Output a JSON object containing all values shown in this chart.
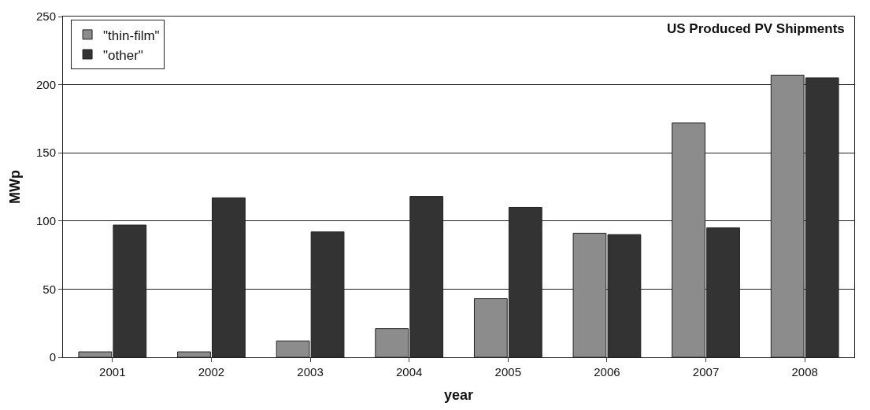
{
  "chart_data": {
    "type": "bar",
    "title": "US Produced PV Shipments",
    "xlabel": "year",
    "ylabel": "MWp",
    "categories": [
      "2001",
      "2002",
      "2003",
      "2004",
      "2005",
      "2006",
      "2007",
      "2008"
    ],
    "series": [
      {
        "name": "\"thin-film\"",
        "color": "#8c8c8c",
        "values": [
          4,
          4,
          12,
          21,
          43,
          91,
          172,
          207
        ]
      },
      {
        "name": "\"other\"",
        "color": "#333333",
        "values": [
          97,
          117,
          92,
          118,
          110,
          90,
          95,
          205
        ]
      }
    ],
    "ylim": [
      0,
      250
    ],
    "yticks": [
      0,
      50,
      100,
      150,
      200,
      250
    ],
    "grid": "y",
    "legend": "top left"
  }
}
